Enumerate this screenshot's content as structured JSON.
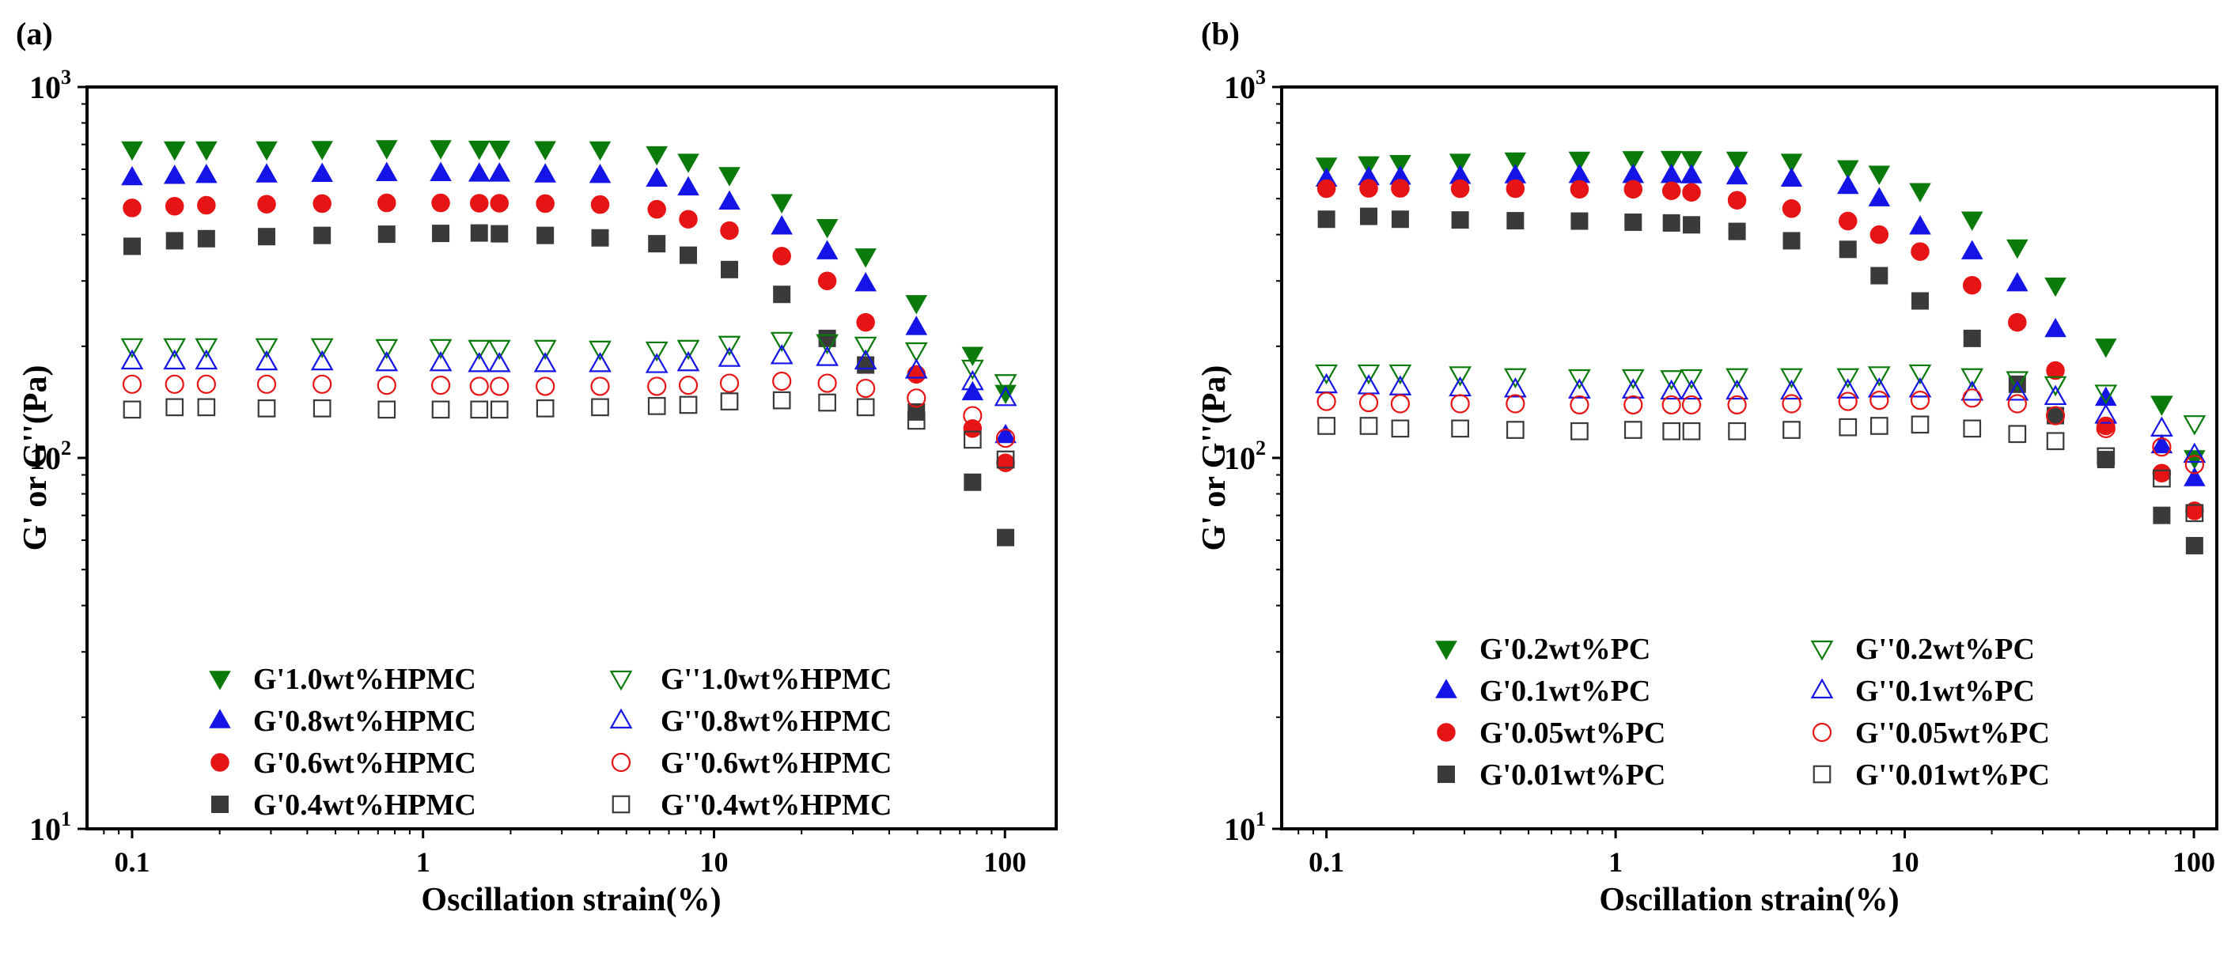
{
  "x_ticks": [
    "0.1",
    "1",
    "10",
    "100"
  ],
  "colors": {
    "green": "#0a7a0a",
    "blue": "#1414e6",
    "red": "#e61414",
    "black": "#3a3a3a"
  },
  "chart_data": [
    {
      "panel_label": "(a)",
      "type": "scatter",
      "xscale": "log",
      "yscale": "log",
      "xlim": [
        0.07,
        150
      ],
      "ylim": [
        10,
        1000
      ],
      "xlabel": "Oscillation strain(%)",
      "ylabel": "G' or G''(Pa)",
      "y_ticks": [
        {
          "b": "10",
          "e": "1",
          "v": 10
        },
        {
          "b": "10",
          "e": "2",
          "v": 100
        },
        {
          "b": "10",
          "e": "3",
          "v": 1000
        }
      ],
      "x": [
        0.1,
        0.14,
        0.18,
        0.29,
        0.45,
        0.75,
        1.15,
        1.56,
        1.83,
        2.63,
        4.06,
        6.36,
        8.16,
        11.3,
        17.1,
        24.5,
        33.2,
        49.6,
        77.4,
        100.5
      ],
      "legend_placement": "bottom-left",
      "series": [
        {
          "name": "G'1.0wt%HPMC",
          "marker": "tri-down",
          "filled": true,
          "color": "#0a7a0a",
          "values": [
            680,
            680,
            680,
            680,
            682,
            685,
            685,
            683,
            683,
            681,
            680,
            660,
            630,
            580,
            490,
            420,
            350,
            262,
            190,
            150
          ]
        },
        {
          "name": "G'0.8wt%HPMC",
          "marker": "tri-up",
          "filled": true,
          "color": "#1414e6",
          "values": [
            570,
            575,
            578,
            580,
            582,
            585,
            585,
            583,
            583,
            580,
            578,
            565,
            535,
            490,
            420,
            360,
            295,
            225,
            150,
            115
          ]
        },
        {
          "name": "G'0.6wt%HPMC",
          "marker": "circle",
          "filled": true,
          "color": "#e61414",
          "values": [
            472,
            477,
            480,
            483,
            485,
            487,
            487,
            486,
            486,
            485,
            482,
            468,
            440,
            410,
            350,
            300,
            232,
            168,
            120,
            97
          ]
        },
        {
          "name": "G'0.4wt%HPMC",
          "marker": "square",
          "filled": true,
          "color": "#3a3a3a",
          "values": [
            372,
            385,
            390,
            395,
            398,
            401,
            403,
            404,
            402,
            398,
            392,
            378,
            352,
            322,
            276,
            210,
            178,
            133,
            86,
            61
          ]
        },
        {
          "name": "G''1.0wt%HPMC",
          "marker": "tri-down",
          "filled": false,
          "color": "#0a7a0a",
          "values": [
            200,
            200,
            200,
            200,
            200,
            199,
            199,
            198,
            198,
            198,
            197,
            196,
            198,
            203,
            208,
            205,
            202,
            195,
            175,
            160
          ]
        },
        {
          "name": "G''0.8wt%HPMC",
          "marker": "tri-up",
          "filled": false,
          "color": "#1414e6",
          "values": [
            182,
            182,
            182,
            181,
            181,
            180,
            180,
            179,
            179,
            179,
            179,
            178,
            180,
            185,
            188,
            186,
            182,
            172,
            160,
            145
          ]
        },
        {
          "name": "G''0.6wt%HPMC",
          "marker": "circle",
          "filled": false,
          "color": "#e61414",
          "values": [
            158,
            158,
            158,
            158,
            158,
            157,
            157,
            156,
            156,
            156,
            156,
            156,
            157,
            159,
            161,
            159,
            154,
            145,
            130,
            113
          ]
        },
        {
          "name": "G''0.4wt%HPMC",
          "marker": "square",
          "filled": false,
          "color": "#3a3a3a",
          "values": [
            135,
            137,
            137,
            136,
            136,
            135,
            135,
            135,
            135,
            136,
            137,
            138,
            139,
            142,
            143,
            141,
            137,
            126,
            112,
            99
          ]
        }
      ]
    },
    {
      "panel_label": "(b)",
      "type": "scatter",
      "xscale": "log",
      "yscale": "log",
      "xlim": [
        0.07,
        120
      ],
      "ylim": [
        10,
        1000
      ],
      "xlabel": "Oscillation strain(%)",
      "ylabel": "G' or G''(Pa)",
      "y_ticks": [
        {
          "b": "10",
          "e": "1",
          "v": 10
        },
        {
          "b": "10",
          "e": "2",
          "v": 100
        },
        {
          "b": "10",
          "e": "3",
          "v": 1000
        }
      ],
      "x": [
        0.1,
        0.14,
        0.18,
        0.29,
        0.45,
        0.75,
        1.15,
        1.56,
        1.83,
        2.63,
        4.06,
        6.36,
        8.16,
        11.3,
        17.1,
        24.5,
        33.2,
        49.6,
        77.4,
        100.5
      ],
      "legend_placement": "bottom-right",
      "series": [
        {
          "name": "G'0.2wt%PC",
          "marker": "tri-down",
          "filled": true,
          "color": "#0a7a0a",
          "values": [
            615,
            620,
            625,
            630,
            635,
            638,
            640,
            641,
            640,
            638,
            630,
            605,
            585,
            525,
            440,
            370,
            292,
            200,
            140,
            100
          ]
        },
        {
          "name": "G'0.1wt%PC",
          "marker": "tri-up",
          "filled": true,
          "color": "#1414e6",
          "values": [
            565,
            570,
            572,
            575,
            577,
            578,
            578,
            578,
            577,
            573,
            565,
            540,
            500,
            420,
            360,
            295,
            222,
            145,
            108,
            88
          ]
        },
        {
          "name": "G'0.05wt%PC",
          "marker": "circle",
          "filled": true,
          "color": "#e61414",
          "values": [
            532,
            533,
            533,
            532,
            532,
            530,
            530,
            525,
            520,
            495,
            470,
            435,
            400,
            360,
            292,
            232,
            172,
            122,
            91,
            72
          ]
        },
        {
          "name": "G'0.01wt%PC",
          "marker": "square",
          "filled": true,
          "color": "#3a3a3a",
          "values": [
            440,
            448,
            440,
            438,
            436,
            435,
            432,
            430,
            425,
            408,
            385,
            365,
            310,
            265,
            210,
            158,
            130,
            99,
            70,
            58
          ]
        },
        {
          "name": "G''0.2wt%PC",
          "marker": "tri-down",
          "filled": false,
          "color": "#0a7a0a",
          "values": [
            170,
            170,
            170,
            168,
            166,
            165,
            165,
            164,
            165,
            166,
            166,
            166,
            168,
            170,
            166,
            163,
            158,
            150,
            140,
            124
          ]
        },
        {
          "name": "G''0.1wt%PC",
          "marker": "tri-up",
          "filled": false,
          "color": "#1414e6",
          "values": [
            157,
            156,
            155,
            154,
            153,
            152,
            152,
            151,
            151,
            151,
            151,
            152,
            153,
            153,
            150,
            150,
            146,
            130,
            120,
            102
          ]
        },
        {
          "name": "G''0.05wt%PC",
          "marker": "circle",
          "filled": false,
          "color": "#e61414",
          "values": [
            142,
            141,
            140,
            140,
            140,
            139,
            139,
            139,
            139,
            139,
            140,
            142,
            143,
            143,
            145,
            140,
            130,
            120,
            107,
            96
          ]
        },
        {
          "name": "G''0.01wt%PC",
          "marker": "square",
          "filled": false,
          "color": "#3a3a3a",
          "values": [
            122,
            122,
            120,
            120,
            119,
            118,
            119,
            118,
            118,
            118,
            119,
            121,
            122,
            123,
            120,
            116,
            111,
            101,
            88,
            71
          ]
        }
      ]
    }
  ]
}
